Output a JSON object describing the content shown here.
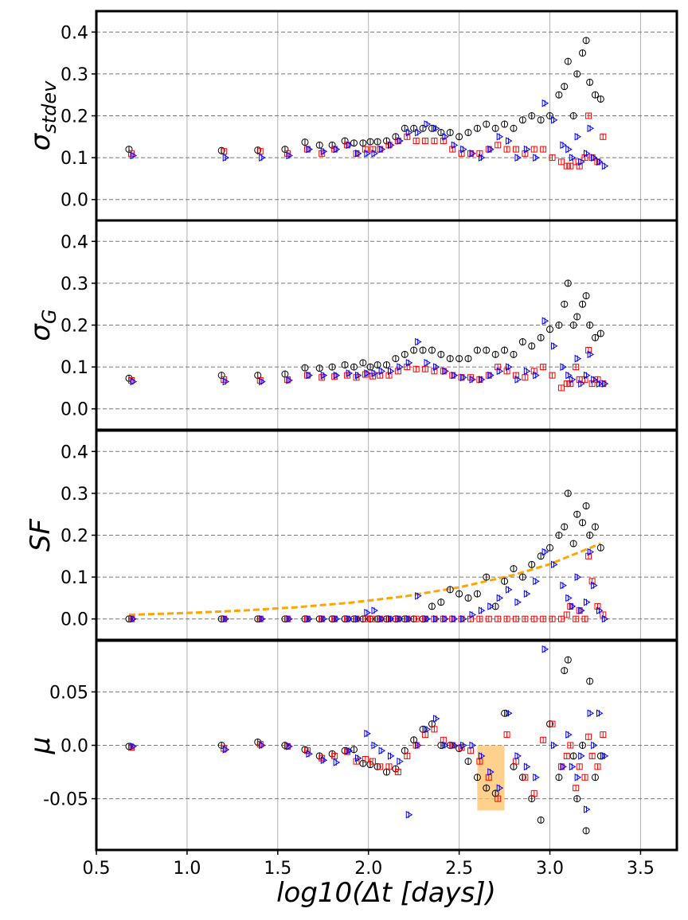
{
  "chart_data": {
    "type": "scatter",
    "xlabel": "log10(Δt [days])",
    "xlim": [
      0.5,
      3.7
    ],
    "xticks": [
      "0.5",
      "1.0",
      "1.5",
      "2.0",
      "2.5",
      "3.0",
      "3.5"
    ],
    "grid": {
      "x": "solid-light",
      "y": "dashed"
    },
    "series_styles": [
      {
        "marker": "open-circle",
        "color": "#000000"
      },
      {
        "marker": "open-square",
        "color": "#ff0000"
      },
      {
        "marker": "open-triangle-right",
        "color": "#0000ff"
      }
    ],
    "x": [
      0.68,
      1.19,
      1.39,
      1.54,
      1.65,
      1.73,
      1.8,
      1.87,
      1.92,
      1.97,
      2.01,
      2.05,
      2.1,
      2.15,
      2.2,
      2.25,
      2.3,
      2.35,
      2.4,
      2.45,
      2.5,
      2.55,
      2.6,
      2.65,
      2.7,
      2.75,
      2.8,
      2.85,
      2.9,
      2.95,
      3.0,
      3.05,
      3.08,
      3.1,
      3.13,
      3.15,
      3.18,
      3.2,
      3.22,
      3.25,
      3.28
    ],
    "panels": [
      {
        "ylabel": "σstdev",
        "ylabel_main": "σ",
        "ylabel_sub": "stdev",
        "ylim": [
          -0.05,
          0.45
        ],
        "yticks": [
          {
            "v": 0.0,
            "t": "0.0"
          },
          {
            "v": 0.1,
            "t": "0.1"
          },
          {
            "v": 0.2,
            "t": "0.2"
          },
          {
            "v": 0.3,
            "t": "0.3"
          },
          {
            "v": 0.4,
            "t": "0.4"
          }
        ],
        "series": [
          [
            0.12,
            0.117,
            0.118,
            0.12,
            0.137,
            0.13,
            0.13,
            0.14,
            0.135,
            0.135,
            0.138,
            0.138,
            0.14,
            0.15,
            0.17,
            0.17,
            0.17,
            0.17,
            0.16,
            0.16,
            0.15,
            0.16,
            0.17,
            0.18,
            0.17,
            0.18,
            0.17,
            0.19,
            0.2,
            0.19,
            0.2,
            0.25,
            0.27,
            0.33,
            0.2,
            0.3,
            0.35,
            0.38,
            0.28,
            0.25,
            0.24
          ],
          [
            0.11,
            0.115,
            0.115,
            0.11,
            0.12,
            0.11,
            0.12,
            0.13,
            0.11,
            0.12,
            0.12,
            0.12,
            0.13,
            0.14,
            0.15,
            0.14,
            0.14,
            0.14,
            0.14,
            0.12,
            0.11,
            0.11,
            0.11,
            0.12,
            0.13,
            0.12,
            0.12,
            0.11,
            0.12,
            0.12,
            0.1,
            0.09,
            0.08,
            0.08,
            0.09,
            0.08,
            0.1,
            0.2,
            0.1,
            0.09,
            0.15
          ],
          [
            0.105,
            0.1,
            0.1,
            0.105,
            0.12,
            0.115,
            0.12,
            0.13,
            0.11,
            0.11,
            0.11,
            0.12,
            0.13,
            0.14,
            0.16,
            0.16,
            0.18,
            0.17,
            0.15,
            0.13,
            0.12,
            0.11,
            0.1,
            0.12,
            0.15,
            0.14,
            0.1,
            0.12,
            0.1,
            0.23,
            0.19,
            0.13,
            0.12,
            0.1,
            0.15,
            0.09,
            0.11,
            0.17,
            0.1,
            0.09,
            0.08
          ]
        ]
      },
      {
        "ylabel": "σG",
        "ylabel_main": "σ",
        "ylabel_sub": "G",
        "ylim": [
          -0.05,
          0.45
        ],
        "yticks": [
          {
            "v": 0.0,
            "t": "0.0"
          },
          {
            "v": 0.1,
            "t": "0.1"
          },
          {
            "v": 0.2,
            "t": "0.2"
          },
          {
            "v": 0.3,
            "t": "0.3"
          },
          {
            "v": 0.4,
            "t": "0.4"
          }
        ],
        "series": [
          [
            0.073,
            0.08,
            0.08,
            0.083,
            0.098,
            0.097,
            0.1,
            0.105,
            0.1,
            0.11,
            0.1,
            0.105,
            0.105,
            0.12,
            0.13,
            0.14,
            0.14,
            0.14,
            0.13,
            0.12,
            0.12,
            0.12,
            0.14,
            0.14,
            0.13,
            0.14,
            0.13,
            0.16,
            0.15,
            0.17,
            0.19,
            0.2,
            0.25,
            0.3,
            0.2,
            0.22,
            0.25,
            0.27,
            0.2,
            0.17,
            0.18
          ],
          [
            0.068,
            0.07,
            0.068,
            0.07,
            0.08,
            0.075,
            0.077,
            0.08,
            0.075,
            0.082,
            0.078,
            0.08,
            0.08,
            0.09,
            0.1,
            0.095,
            0.095,
            0.09,
            0.09,
            0.08,
            0.075,
            0.075,
            0.07,
            0.08,
            0.1,
            0.09,
            0.08,
            0.075,
            0.09,
            0.1,
            0.08,
            0.05,
            0.06,
            0.06,
            0.1,
            0.07,
            0.07,
            0.14,
            0.06,
            0.07,
            0.06
          ],
          [
            0.065,
            0.065,
            0.065,
            0.068,
            0.08,
            0.08,
            0.08,
            0.085,
            0.08,
            0.085,
            0.085,
            0.09,
            0.09,
            0.1,
            0.11,
            0.16,
            0.11,
            0.1,
            0.09,
            0.08,
            0.075,
            0.07,
            0.07,
            0.08,
            0.09,
            0.1,
            0.07,
            0.09,
            0.08,
            0.21,
            0.15,
            0.1,
            0.08,
            0.07,
            0.12,
            0.06,
            0.08,
            0.13,
            0.07,
            0.06,
            0.06
          ]
        ]
      },
      {
        "ylabel": "SF",
        "ylabel_main": "SF",
        "ylabel_sub": "",
        "ylim": [
          -0.05,
          0.45
        ],
        "yticks": [
          {
            "v": 0.0,
            "t": "0.0"
          },
          {
            "v": 0.1,
            "t": "0.1"
          },
          {
            "v": 0.2,
            "t": "0.2"
          },
          {
            "v": 0.3,
            "t": "0.3"
          },
          {
            "v": 0.4,
            "t": "0.4"
          }
        ],
        "series": [
          [
            0,
            0,
            0,
            0,
            0,
            0,
            0,
            0,
            0,
            0,
            0,
            0,
            0,
            0,
            0,
            0,
            0,
            0.03,
            0.04,
            0.07,
            0.06,
            0.05,
            0.06,
            0.1,
            0.03,
            0.09,
            0.12,
            0.1,
            0.13,
            0.15,
            0.17,
            0.2,
            0.22,
            0.3,
            0.18,
            0.25,
            0.23,
            0.27,
            0.2,
            0.22,
            0.17
          ],
          [
            0,
            0,
            0,
            0,
            0,
            0,
            0,
            0,
            0,
            0,
            0,
            0,
            0,
            0,
            0,
            0,
            0,
            0,
            0,
            0,
            0,
            0,
            0,
            0,
            0,
            0,
            0,
            0,
            0,
            0,
            0,
            0,
            0.01,
            0.03,
            0,
            0.02,
            0,
            0.15,
            0.09,
            0.03,
            0.01
          ],
          [
            0,
            0,
            0,
            0,
            0,
            0,
            0,
            0,
            0,
            0.015,
            0.02,
            0,
            0,
            0,
            0,
            0.055,
            0,
            0,
            0,
            0,
            0,
            0.01,
            0.02,
            0.03,
            0.05,
            0.07,
            0.04,
            0.06,
            0.09,
            0.16,
            0.13,
            0.08,
            0.05,
            0.03,
            0.1,
            0.02,
            0.04,
            0.16,
            0.08,
            0.02,
            0.0
          ]
        ],
        "model_curve": {
          "color": "#ffa500",
          "style": "dashed",
          "x": [
            0.68,
            1.0,
            1.3,
            1.6,
            1.9,
            2.2,
            2.5,
            2.8,
            3.0,
            3.28
          ],
          "y": [
            0.01,
            0.0143,
            0.0199,
            0.0278,
            0.0388,
            0.054,
            0.0754,
            0.105,
            0.131,
            0.18
          ]
        }
      },
      {
        "ylabel": "μ",
        "ylabel_main": "μ",
        "ylabel_sub": "",
        "ylim": [
          -0.098,
          0.098
        ],
        "yticks": [
          {
            "v": -0.05,
            "t": "-0.05"
          },
          {
            "v": 0.0,
            "t": "0.0"
          },
          {
            "v": 0.05,
            "t": "0.05"
          }
        ],
        "series": [
          [
            -0.001,
            0.0,
            0.003,
            0.0,
            -0.004,
            -0.01,
            -0.008,
            -0.005,
            -0.004,
            -0.017,
            -0.018,
            -0.02,
            -0.025,
            -0.022,
            -0.005,
            0.005,
            0.015,
            0.02,
            0.0,
            0.0,
            -0.003,
            -0.015,
            -0.03,
            -0.04,
            -0.045,
            0.03,
            -0.02,
            -0.03,
            -0.05,
            -0.07,
            0.02,
            -0.03,
            0.07,
            0.08,
            -0.01,
            -0.05,
            0.0,
            -0.08,
            0.06,
            -0.03,
            -0.01
          ],
          [
            -0.002,
            -0.003,
            0.001,
            -0.001,
            -0.005,
            -0.012,
            -0.01,
            -0.006,
            -0.015,
            -0.013,
            -0.015,
            -0.02,
            -0.02,
            -0.025,
            -0.01,
            0.0,
            0.01,
            0.015,
            0.005,
            0.0,
            -0.002,
            -0.005,
            -0.015,
            -0.03,
            -0.05,
            0.01,
            -0.015,
            -0.03,
            -0.045,
            0.005,
            0.02,
            -0.02,
            -0.01,
            0.0,
            -0.04,
            -0.02,
            -0.03,
            0.008,
            -0.01,
            -0.02,
            0.01
          ],
          [
            -0.001,
            -0.004,
            0.0,
            -0.001,
            -0.008,
            -0.014,
            -0.016,
            -0.005,
            -0.012,
            0.011,
            0.0,
            -0.005,
            -0.01,
            -0.015,
            -0.065,
            0.0,
            0.015,
            0.025,
            0.0,
            0.0,
            0.0,
            0.0,
            -0.01,
            -0.025,
            -0.04,
            0.03,
            -0.01,
            -0.02,
            -0.03,
            0.09,
            0.0,
            -0.02,
            0.01,
            -0.02,
            -0.03,
            -0.01,
            -0.06,
            0.03,
            0.0,
            0.03,
            -0.01
          ]
        ],
        "highlight_region": {
          "x": [
            2.6,
            2.75
          ],
          "y": [
            -0.061,
            0.0
          ],
          "color": "#ffc266"
        }
      }
    ]
  }
}
